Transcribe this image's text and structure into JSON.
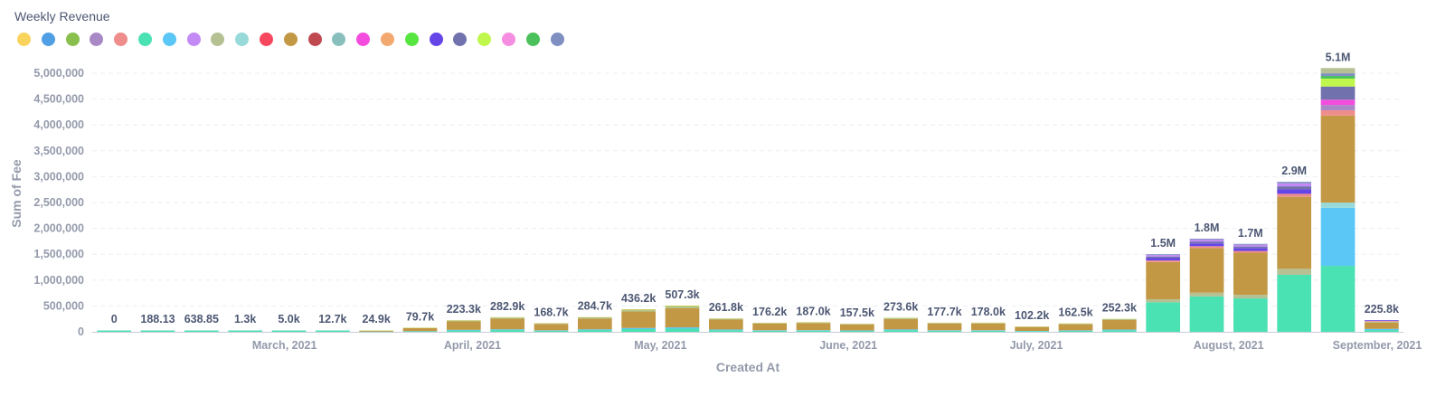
{
  "header": {
    "title": "Weekly Revenue"
  },
  "legend_colors": [
    "#f9d45c",
    "#509ee3",
    "#88bf4d",
    "#a989c5",
    "#ef8c8c",
    "#4ae1b3",
    "#5ac7f7",
    "#c389f5",
    "#b5c193",
    "#98d9d9",
    "#f6475e",
    "#c29845",
    "#c04850",
    "#88bfbd",
    "#f44ddd",
    "#f2a86f",
    "#57e63f",
    "#6545e8",
    "#7172ad",
    "#c0f74d",
    "#f58ee0",
    "#4ac15a",
    "#7f8fc2"
  ],
  "chart_data": {
    "type": "bar",
    "stacked": true,
    "title": "Weekly Revenue",
    "xlabel": "Created At",
    "ylabel": "Sum of Fee",
    "ylim": [
      0,
      5000000
    ],
    "yticks": [
      "0",
      "500,000",
      "1,000,000",
      "1,500,000",
      "2,000,000",
      "2,500,000",
      "3,000,000",
      "3,500,000",
      "4,000,000",
      "4,500,000",
      "5,000,000"
    ],
    "x_month_labels": [
      "March, 2021",
      "April, 2021",
      "May, 2021",
      "June, 2021",
      "July, 2021",
      "August, 2021",
      "September, 2021"
    ],
    "totals": [
      0,
      188.13,
      638.85,
      1300,
      5000,
      12700,
      24900,
      79700,
      223300,
      282900,
      168700,
      284700,
      436200,
      507300,
      261800,
      176200,
      187000,
      157500,
      273600,
      177700,
      178000,
      102200,
      162500,
      252300,
      1500000,
      1800000,
      1700000,
      2900000,
      5100000,
      225800
    ],
    "total_labels": [
      "0",
      "188.13",
      "638.85",
      "1.3k",
      "5.0k",
      "12.7k",
      "24.9k",
      "79.7k",
      "223.3k",
      "282.9k",
      "168.7k",
      "284.7k",
      "436.2k",
      "507.3k",
      "261.8k",
      "176.2k",
      "187.0k",
      "157.5k",
      "273.6k",
      "177.7k",
      "178.0k",
      "102.2k",
      "162.5k",
      "252.3k",
      "1.5M",
      "1.8M",
      "1.7M",
      "2.9M",
      "5.1M",
      "225.8k"
    ]
  }
}
